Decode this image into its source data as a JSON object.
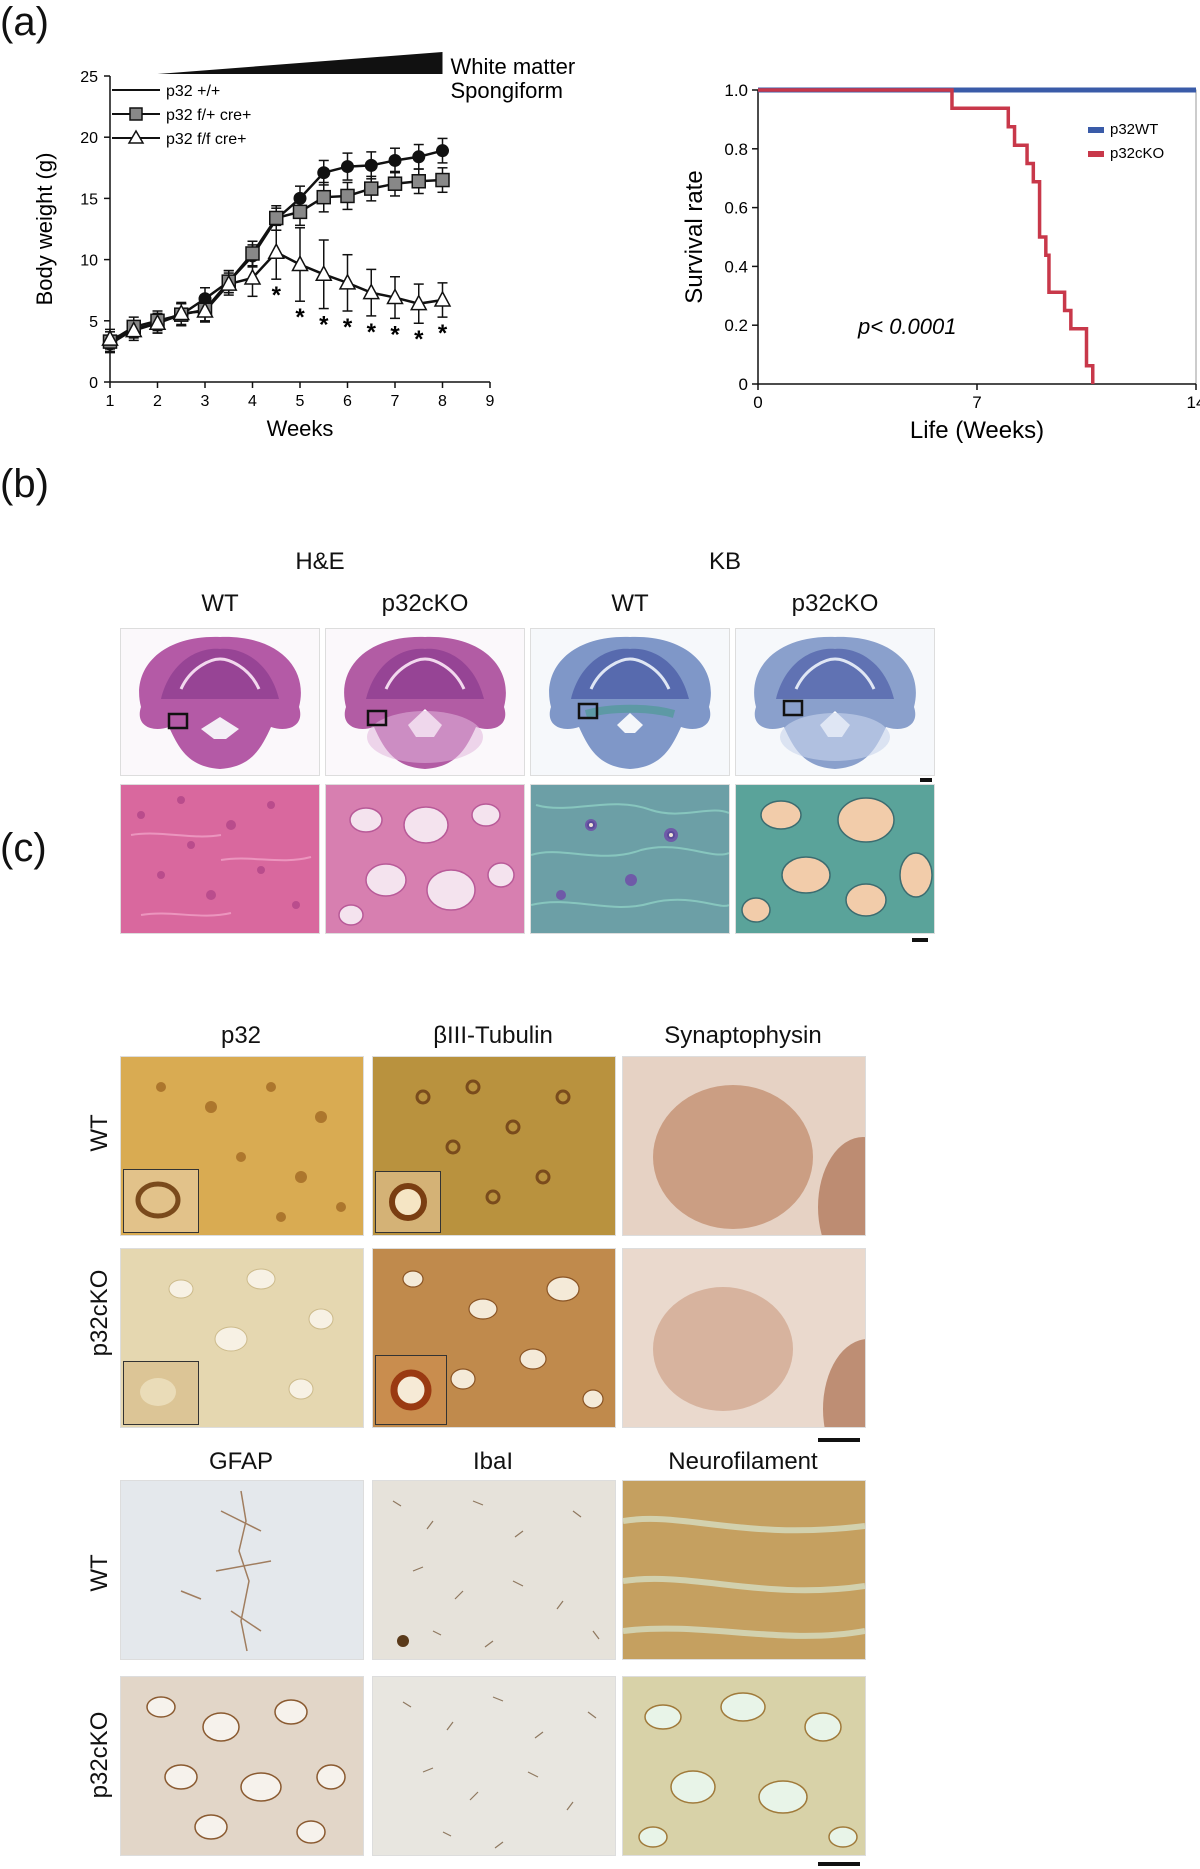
{
  "panels": {
    "a": "(a)",
    "b": "(b)",
    "c": "(c)"
  },
  "chart_data": [
    {
      "type": "line",
      "xlabel": "Weeks",
      "ylabel": "Body weight (g)",
      "xlim": [
        1,
        9
      ],
      "ylim": [
        0,
        25
      ],
      "xticks": [
        1,
        2,
        3,
        4,
        5,
        6,
        7,
        8,
        9
      ],
      "yticks": [
        0,
        5,
        10,
        15,
        20,
        25
      ],
      "annotation": [
        "White matter",
        "Spongiform"
      ],
      "significance_marker": "*",
      "series": [
        {
          "name": "p32 +/+",
          "marker": "circle",
          "color": "#111111",
          "x": [
            1,
            1.5,
            2,
            2.5,
            3,
            3.5,
            4,
            4.5,
            5,
            5.5,
            6,
            6.5,
            7,
            7.5,
            8
          ],
          "values": [
            3.1,
            4.3,
            4.8,
            5.5,
            6.8,
            8.2,
            10.3,
            13.3,
            15.0,
            17.1,
            17.6,
            17.7,
            18.1,
            18.4,
            18.9
          ],
          "error": [
            0.7,
            0.7,
            0.8,
            0.9,
            0.9,
            0.9,
            0.9,
            0.9,
            1.0,
            1.0,
            1.1,
            1.1,
            1.0,
            1.0,
            1.0
          ]
        },
        {
          "name": "p32 f/+ cre+",
          "marker": "square",
          "color": "#888888",
          "x": [
            1,
            1.5,
            2,
            2.5,
            3,
            3.5,
            4,
            4.5,
            5,
            5.5,
            6,
            6.5,
            7,
            7.5,
            8
          ],
          "values": [
            3.3,
            4.5,
            5.0,
            5.5,
            5.9,
            8.2,
            10.5,
            13.4,
            13.9,
            15.1,
            15.2,
            15.8,
            16.2,
            16.4,
            16.5
          ],
          "error": [
            0.8,
            0.8,
            0.8,
            0.9,
            0.9,
            0.9,
            1.0,
            1.0,
            1.1,
            1.2,
            1.1,
            1.0,
            1.0,
            1.0,
            1.0
          ]
        },
        {
          "name": "p32 f/f cre+",
          "marker": "triangle",
          "color": "#ffffff",
          "x": [
            1,
            1.5,
            2,
            2.5,
            3,
            3.5,
            4,
            4.5,
            5,
            5.5,
            6,
            6.5,
            7,
            7.5,
            8
          ],
          "values": [
            3.5,
            4.2,
            4.8,
            5.6,
            5.8,
            8.0,
            8.5,
            10.6,
            9.6,
            8.8,
            8.1,
            7.3,
            6.9,
            6.4,
            6.7
          ],
          "error": [
            0.8,
            0.8,
            0.8,
            0.9,
            0.9,
            0.9,
            1.5,
            2.2,
            3.0,
            2.8,
            2.3,
            1.9,
            1.7,
            1.6,
            1.4
          ],
          "significant_at": [
            4.5,
            5,
            5.5,
            6,
            6.5,
            7,
            7.5,
            8
          ]
        }
      ]
    },
    {
      "type": "line",
      "step": true,
      "xlabel": "Life (Weeks)",
      "ylabel": "Survival rate",
      "xlim": [
        0,
        14
      ],
      "ylim": [
        0,
        1.0
      ],
      "xticks": [
        0,
        7,
        14
      ],
      "yticks": [
        0,
        0.2,
        0.4,
        0.6,
        0.8,
        1.0
      ],
      "ytick_labels": [
        "0",
        "0.2",
        "0.4",
        "0.6",
        "0.8",
        "1.0"
      ],
      "annotation": "p< 0.0001",
      "legend_position": "top-right",
      "series": [
        {
          "name": "p32WT",
          "color": "#3a5ba8",
          "x": [
            0,
            14
          ],
          "values": [
            1.0,
            1.0
          ]
        },
        {
          "name": "p32cKO",
          "color": "#c8384a",
          "x": [
            0,
            6.2,
            6.2,
            8.0,
            8.0,
            8.2,
            8.2,
            8.6,
            8.6,
            8.8,
            8.8,
            9.0,
            9.0,
            9.2,
            9.2,
            9.3,
            9.3,
            9.8,
            9.8,
            10.0,
            10.0,
            10.5,
            10.5,
            10.7,
            10.7
          ],
          "values": [
            1.0,
            1.0,
            0.938,
            0.938,
            0.875,
            0.875,
            0.812,
            0.812,
            0.75,
            0.75,
            0.688,
            0.688,
            0.5,
            0.5,
            0.438,
            0.438,
            0.312,
            0.312,
            0.25,
            0.25,
            0.188,
            0.188,
            0.062,
            0.062,
            0.0
          ]
        }
      ]
    }
  ],
  "panel_b": {
    "groups": [
      "H&E",
      "KB"
    ],
    "columns": [
      "WT",
      "p32cKO",
      "WT",
      "p32cKO"
    ]
  },
  "panel_c": {
    "top_columns": [
      "p32",
      "βIII-Tubulin",
      "Synaptophysin"
    ],
    "bottom_columns": [
      "GFAP",
      "IbaI",
      "Neurofilament"
    ],
    "rows": [
      "WT",
      "p32cKO",
      "WT",
      "p32cKO"
    ]
  }
}
